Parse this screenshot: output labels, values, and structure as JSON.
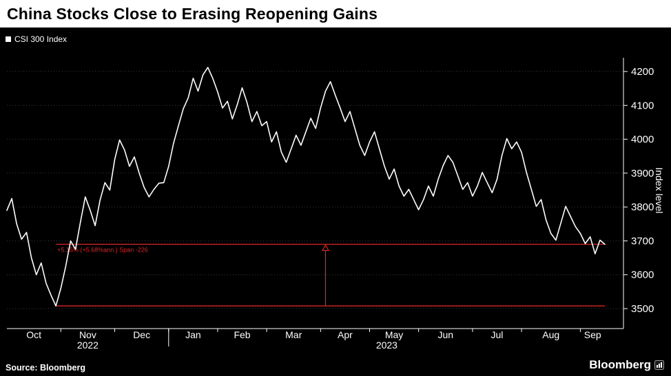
{
  "header": {
    "title": "China Stocks Close to Erasing Reopening Gains"
  },
  "legend": {
    "label": "CSI 300 Index",
    "swatch_color": "#ffffff"
  },
  "footer": {
    "source": "Source: Bloomberg",
    "brand": "Bloomberg"
  },
  "colors": {
    "background": "#000000",
    "titlebar": "#ffffff",
    "line": "#ffffff",
    "grid": "#3d3d3d",
    "axis": "#ffffff",
    "annotation_red": "#d92626"
  },
  "chart_data": {
    "type": "line",
    "title": "China Stocks Close to Erasing Reopening Gains",
    "legend": "CSI 300 Index",
    "ylabel": "Index level",
    "xlabel": "",
    "ylim": [
      3440,
      4240
    ],
    "yticks": [
      3500,
      3600,
      3700,
      3800,
      3900,
      4000,
      4100,
      4200
    ],
    "grid": "dotted-horizontal",
    "legend_position": "top-left",
    "x_months": [
      "Oct",
      "Nov",
      "Dec",
      "Jan",
      "Feb",
      "Mar",
      "Apr",
      "May",
      "Jun",
      "Jul",
      "Aug",
      "Sep"
    ],
    "month_start_indices": [
      0,
      11,
      22,
      33,
      43,
      53,
      64,
      74,
      84,
      95,
      105,
      117
    ],
    "years": [
      {
        "label": "2022",
        "start_index": 0,
        "end_index": 33
      },
      {
        "label": "2023",
        "start_index": 33,
        "end_index": 122
      }
    ],
    "values": [
      3790,
      3825,
      3750,
      3705,
      3725,
      3650,
      3600,
      3635,
      3575,
      3540,
      3508,
      3560,
      3625,
      3700,
      3675,
      3755,
      3830,
      3790,
      3745,
      3820,
      3872,
      3850,
      3940,
      3998,
      3968,
      3920,
      3948,
      3900,
      3858,
      3830,
      3852,
      3870,
      3872,
      3920,
      3988,
      4040,
      4090,
      4122,
      4180,
      4142,
      4190,
      4212,
      4180,
      4140,
      4092,
      4112,
      4060,
      4102,
      4152,
      4108,
      4052,
      4082,
      4040,
      4052,
      3992,
      4022,
      3962,
      3932,
      3972,
      4012,
      3982,
      4022,
      4062,
      4032,
      4092,
      4142,
      4170,
      4130,
      4092,
      4052,
      4082,
      4032,
      3982,
      3952,
      3992,
      4022,
      3972,
      3922,
      3882,
      3912,
      3862,
      3832,
      3852,
      3822,
      3792,
      3822,
      3862,
      3832,
      3882,
      3922,
      3952,
      3932,
      3892,
      3852,
      3872,
      3832,
      3862,
      3902,
      3872,
      3842,
      3882,
      3952,
      4002,
      3972,
      3992,
      3962,
      3902,
      3852,
      3802,
      3822,
      3762,
      3722,
      3702,
      3752,
      3802,
      3772,
      3742,
      3722,
      3692,
      3712,
      3662,
      3702,
      3690
    ],
    "annotation": {
      "text": "+5.15% (+5.68%ann.) Span -226",
      "low_value": 3508,
      "low_index": 10,
      "end_value": 3690,
      "arrow_index": 65,
      "color": "#d92626"
    }
  }
}
